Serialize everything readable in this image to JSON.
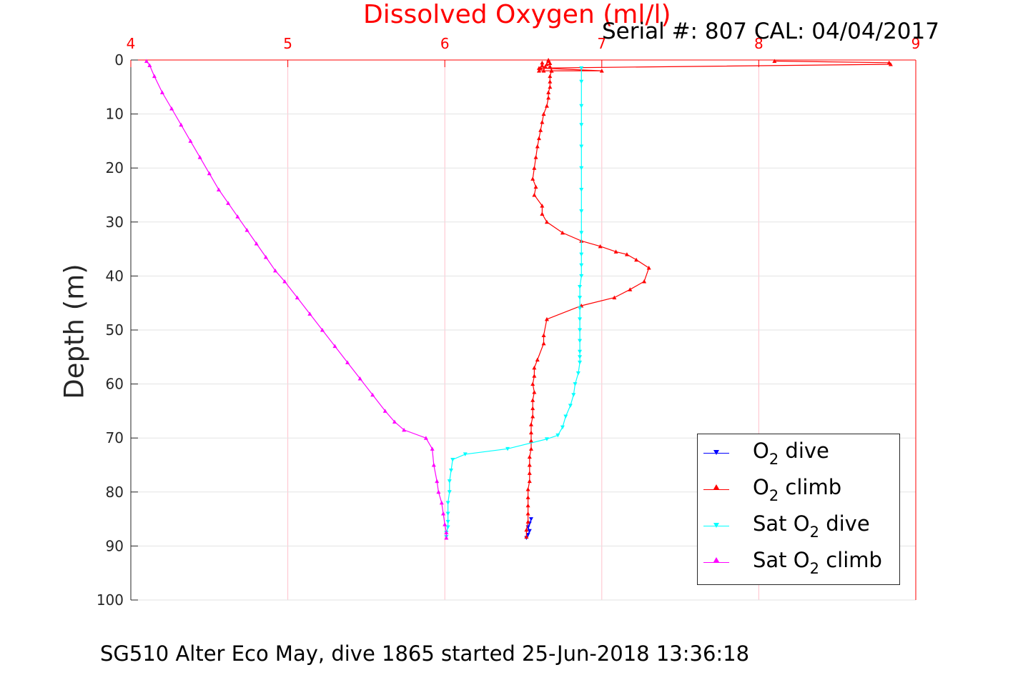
{
  "title": "Dissolved Oxygen (ml/l)",
  "serial_text": "Serial #: 807  CAL: 04/04/2017",
  "footer": "SG510 Alter Eco May, dive 1865 started 25-Jun-2018 13:36:18",
  "ylabel": "Depth (m)",
  "colors": {
    "title": "#ff0000",
    "x_ticks": "#ff0000",
    "grid": "#ffc0cb",
    "axis_left": "#262626"
  },
  "legend": [
    {
      "prefix": "O",
      "sub": "2",
      "suffix": " dive",
      "color": "#0000ff",
      "marker": "down"
    },
    {
      "prefix": "O",
      "sub": "2",
      "suffix": " climb",
      "color": "#ff0000",
      "marker": "up"
    },
    {
      "prefix": "Sat O",
      "sub": "2",
      "suffix": " dive",
      "color": "#00ffff",
      "marker": "down"
    },
    {
      "prefix": "Sat O",
      "sub": "2",
      "suffix": " climb",
      "color": "#ff00ff",
      "marker": "up"
    }
  ],
  "chart_data": {
    "type": "line",
    "title": "Dissolved Oxygen (ml/l)",
    "ylabel": "Depth (m)",
    "xlabel": "",
    "xlim": [
      4,
      9
    ],
    "ylim": [
      0,
      100
    ],
    "y_reversed": true,
    "x_ticks": [
      "4",
      "5",
      "6",
      "7",
      "8",
      "9"
    ],
    "y_ticks": [
      "0",
      "10",
      "20",
      "30",
      "40",
      "50",
      "60",
      "70",
      "80",
      "90",
      "100"
    ],
    "x_tick_values": [
      4,
      5,
      6,
      7,
      8,
      9
    ],
    "y_tick_values": [
      0,
      10,
      20,
      30,
      40,
      50,
      60,
      70,
      80,
      90,
      100
    ],
    "grid": true,
    "legend_position": "bottom-right",
    "series": [
      {
        "name": "O2 dive",
        "color": "#0000ff",
        "marker": "down",
        "x": [
          6.55,
          6.54,
          6.53,
          6.54,
          6.53,
          6.52
        ],
        "y": [
          85.0,
          85.8,
          86.5,
          87.2,
          87.9,
          88.5
        ]
      },
      {
        "name": "O2 climb",
        "color": "#ff0000",
        "marker": "up",
        "x": [
          6.52,
          6.52,
          6.53,
          6.53,
          6.53,
          6.53,
          6.53,
          6.54,
          6.54,
          6.54,
          6.54,
          6.55,
          6.55,
          6.55,
          6.55,
          6.56,
          6.56,
          6.56,
          6.57,
          6.56,
          6.57,
          6.57,
          6.59,
          6.63,
          6.63,
          6.65,
          6.87,
          7.08,
          7.18,
          7.27,
          7.3,
          7.22,
          7.16,
          7.09,
          6.99,
          6.87,
          6.75,
          6.65,
          6.62,
          6.62,
          6.57,
          6.58,
          6.56,
          6.57,
          6.58,
          6.59,
          6.6,
          6.61,
          6.62,
          6.63,
          6.65,
          6.66,
          6.66,
          6.67,
          6.67,
          6.67,
          6.68,
          6.68,
          6.67,
          6.67,
          6.66,
          6.66,
          6.65,
          6.64,
          6.63,
          6.62,
          6.62,
          6.61,
          6.6,
          7.0,
          6.6,
          8.84,
          8.83,
          8.1
        ],
        "y": [
          88.3,
          87.0,
          85.5,
          84.0,
          82.5,
          81.0,
          79.5,
          78.0,
          76.5,
          75.0,
          73.5,
          72.0,
          70.5,
          69.0,
          67.5,
          66.0,
          64.5,
          63.0,
          61.5,
          60.0,
          58.5,
          57.0,
          55.5,
          52.5,
          51.0,
          48.0,
          45.5,
          44.0,
          42.5,
          41.0,
          38.5,
          37.0,
          36.0,
          35.5,
          34.5,
          33.5,
          32.0,
          30.0,
          28.5,
          27.0,
          25.0,
          23.5,
          22.0,
          20.0,
          18.0,
          16.0,
          14.5,
          13.0,
          11.5,
          10.0,
          8.5,
          7.0,
          6.0,
          5.0,
          4.0,
          3.0,
          2.0,
          2.0,
          1.2,
          0.6,
          0.2,
          0.0,
          0.8,
          1.2,
          2.0,
          0.5,
          1.0,
          1.5,
          2.0,
          2.0,
          1.5,
          0.8,
          0.5,
          0.2
        ],
        "x_alt": null
      },
      {
        "name": "Sat O2 dive",
        "color": "#00ffff",
        "marker": "down",
        "x": [
          6.87,
          6.87,
          6.87,
          6.87,
          6.87,
          6.87,
          6.87,
          6.87,
          6.87,
          6.87,
          6.87,
          6.87,
          6.86,
          6.86,
          6.86,
          6.86,
          6.86,
          6.86,
          6.86,
          6.86,
          6.86,
          6.85,
          6.83,
          6.82,
          6.8,
          6.77,
          6.75,
          6.72,
          6.65,
          6.4,
          6.13,
          6.05,
          6.04,
          6.03,
          6.03,
          6.02,
          6.02,
          6.02,
          6.02,
          6.01,
          6.01
        ],
        "y": [
          1.5,
          4.0,
          8.5,
          12.0,
          16.0,
          20.0,
          24.0,
          28.0,
          32.0,
          36.0,
          38.0,
          40.0,
          42.0,
          44.0,
          46.0,
          48.0,
          50.0,
          52.0,
          54.0,
          55.0,
          56.0,
          58.0,
          60.0,
          62.0,
          64.0,
          66.0,
          68.0,
          69.5,
          70.2,
          72.0,
          73.0,
          74.0,
          76.0,
          78.0,
          80.0,
          82.0,
          84.0,
          85.5,
          86.5,
          87.5,
          88.3
        ]
      },
      {
        "name": "Sat O2 climb",
        "color": "#ff00ff",
        "marker": "up",
        "x": [
          4.1,
          4.12,
          4.15,
          4.2,
          4.26,
          4.32,
          4.38,
          4.44,
          4.5,
          4.56,
          4.62,
          4.68,
          4.74,
          4.8,
          4.86,
          4.92,
          4.98,
          5.06,
          5.14,
          5.22,
          5.3,
          5.38,
          5.46,
          5.54,
          5.62,
          5.68,
          5.74,
          5.88,
          5.92,
          5.93,
          5.95,
          5.96,
          5.98,
          5.99,
          6.0,
          6.01,
          6.01
        ],
        "y": [
          0.2,
          1.0,
          3.0,
          6.0,
          9.0,
          12.0,
          15.0,
          18.0,
          21.0,
          24.0,
          26.5,
          29.0,
          31.5,
          34.0,
          36.5,
          39.0,
          41.0,
          44.0,
          47.0,
          50.0,
          53.0,
          56.0,
          59.0,
          62.0,
          65.0,
          67.0,
          68.5,
          70.0,
          72.0,
          75.0,
          78.0,
          80.0,
          82.0,
          84.0,
          86.0,
          87.5,
          88.5
        ]
      }
    ]
  }
}
